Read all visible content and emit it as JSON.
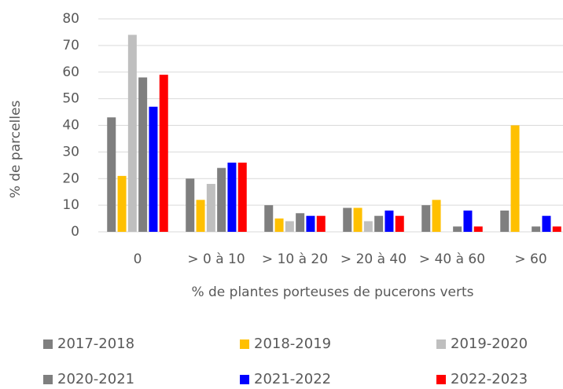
{
  "chart_data": {
    "type": "bar",
    "y_label": "% de parcelles",
    "x_label": "% de plantes porteuses de pucerons verts",
    "categories": [
      "0",
      "> 0 à 10",
      "> 10 à 20",
      "> 20 à 40",
      "> 40 à 60",
      "> 60"
    ],
    "series": [
      {
        "name": "2017-2018",
        "color": "#7f7f7f",
        "values": [
          43,
          20,
          10,
          9,
          10,
          8
        ]
      },
      {
        "name": "2018-2019",
        "color": "#ffc000",
        "values": [
          21,
          12,
          5,
          9,
          12,
          40
        ]
      },
      {
        "name": "2019-2020",
        "color": "#bfbfbf",
        "values": [
          74,
          18,
          4,
          4,
          0,
          0
        ]
      },
      {
        "name": "2020-2021",
        "color": "#7f7f7f",
        "values": [
          58,
          24,
          7,
          6,
          2,
          2
        ]
      },
      {
        "name": "2021-2022",
        "color": "#0000ff",
        "values": [
          47,
          26,
          6,
          8,
          8,
          6
        ]
      },
      {
        "name": "2022-2023",
        "color": "#ff0000",
        "values": [
          59,
          26,
          6,
          6,
          2,
          2
        ]
      }
    ],
    "ylim": [
      0,
      80
    ],
    "yticks": [
      0,
      10,
      20,
      30,
      40,
      50,
      60,
      70,
      80
    ],
    "grid": true
  }
}
